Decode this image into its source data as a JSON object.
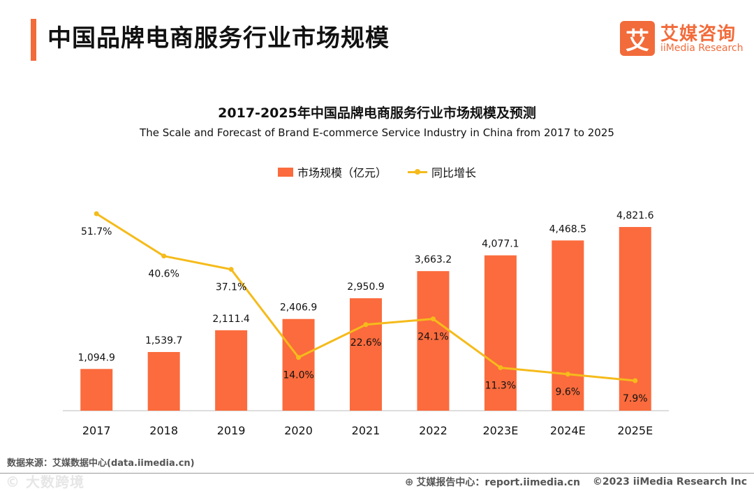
{
  "header": {
    "page_title": "中国品牌电商服务行业市场规模",
    "logo_glyph": "艾",
    "logo_cn": "艾媒咨询",
    "logo_en": "iiMedia Research"
  },
  "footer": {
    "source": "数据来源：艾媒数据中心(data.iimedia.cn)",
    "watermark": "© 大数跨境",
    "report_center": "艾媒报告中心：report.iimedia.cn",
    "copyright": "©2023  iiMedia Research  Inc"
  },
  "colors": {
    "accent": "#f26b3a",
    "bar": "#fb6b3d",
    "line": "#f5bb1b"
  },
  "chart_data": {
    "type": "bar",
    "title": "2017-2025年中国品牌电商服务行业市场规模及预测",
    "subtitle": "The Scale and Forecast of Brand E-commerce Service Industry in China from 2017 to 2025",
    "categories": [
      "2017",
      "2018",
      "2019",
      "2020",
      "2021",
      "2022",
      "2023E",
      "2024E",
      "2025E"
    ],
    "series": [
      {
        "name": "市场规模（亿元）",
        "type": "bar",
        "values": [
          1094.9,
          1539.7,
          2111.4,
          2406.9,
          2950.9,
          3663.2,
          4077.1,
          4468.5,
          4821.6
        ],
        "labels": [
          "1,094.9",
          "1,539.7",
          "2,111.4",
          "2,406.9",
          "2,950.9",
          "3,663.2",
          "4,077.1",
          "4,468.5",
          "4,821.6"
        ]
      },
      {
        "name": "同比增长",
        "type": "line",
        "values": [
          51.7,
          40.6,
          37.1,
          14.0,
          22.6,
          24.1,
          11.3,
          9.6,
          7.9
        ],
        "labels": [
          "51.7%",
          "40.6%",
          "37.1%",
          "14.0%",
          "22.6%",
          "24.1%",
          "11.3%",
          "9.6%",
          "7.9%"
        ]
      }
    ],
    "legend_position": "top-center",
    "grid": false
  }
}
